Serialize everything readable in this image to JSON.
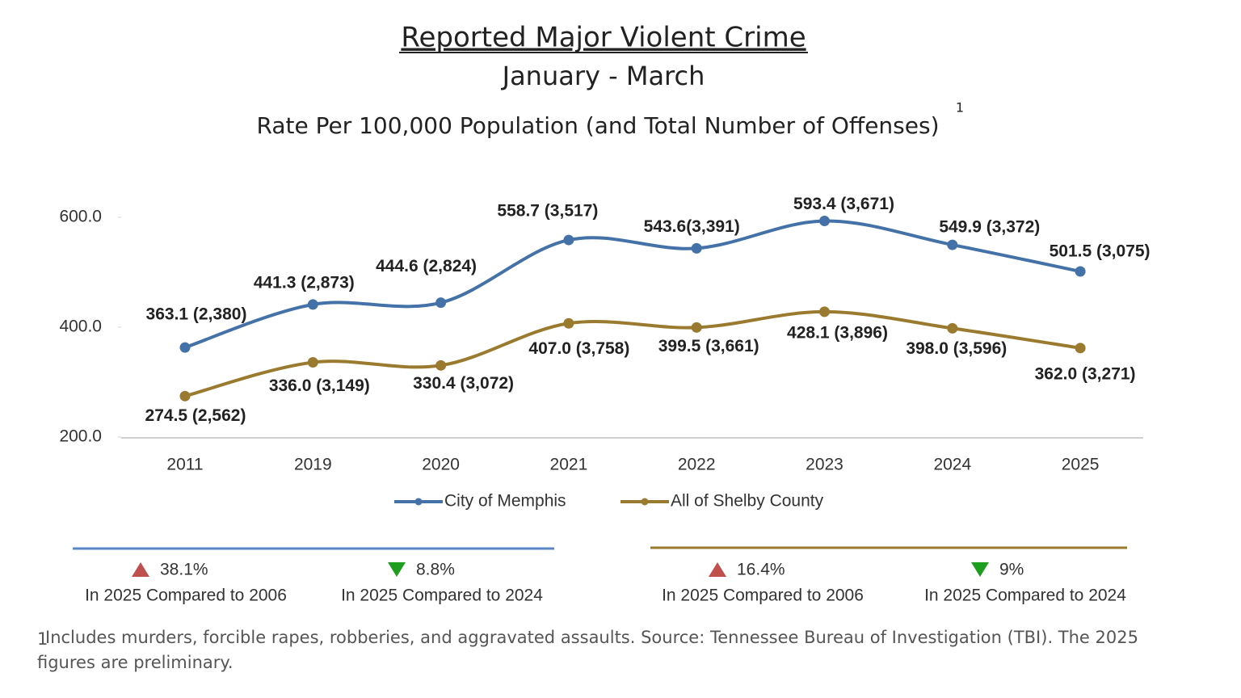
{
  "chart_data": {
    "type": "line",
    "title": "Reported Major Violent Crime",
    "subtitle": "January - March",
    "y_label": "Rate Per 100,000 Population (and Total Number of Offenses)",
    "y_label_note": "1",
    "categories": [
      "2011",
      "2019",
      "2020",
      "2021",
      "2022",
      "2023",
      "2024",
      "2025"
    ],
    "series": [
      {
        "name": "City of Memphis",
        "color": "#4472a8",
        "values": [
          363.1,
          441.3,
          444.6,
          558.7,
          543.6,
          593.4,
          549.9,
          501.5
        ],
        "value_labels": [
          "363.1 (2,380)",
          "441.3 (2,873)",
          "444.6 (2,824)",
          "558.7 (3,517)",
          "543.6(3,391)",
          "593.4 (3,671)",
          "549.9 (3,372)",
          "501.5 (3,075)"
        ]
      },
      {
        "name": "All of Shelby County",
        "color": "#9a7a2e",
        "values": [
          274.5,
          336.0,
          330.4,
          407.0,
          399.5,
          428.1,
          398.0,
          362.0
        ],
        "value_labels": [
          "274.5 (2,562)",
          "336.0 (3,149)",
          "330.4 (3,072)",
          "407.0 (3,758)",
          "399.5 (3,661)",
          "428.1 (3,896)",
          "398.0 (3,596)",
          "362.0 (3,271)"
        ]
      }
    ],
    "ylim": [
      200,
      600
    ],
    "yticks": [
      {
        "value": 200,
        "label": "200.0"
      },
      {
        "value": 400,
        "label": "400.0"
      },
      {
        "value": 600,
        "label": "600.0"
      }
    ],
    "grid": false,
    "legend": "bottom"
  },
  "comparisons": [
    {
      "series": 0,
      "items": [
        {
          "direction": "up",
          "value": 38.1,
          "label": "38.1%",
          "caption": "In 2025 Compared to 2006"
        },
        {
          "direction": "down",
          "value": 8.8,
          "label": "8.8%",
          "caption": "In 2025 Compared to 2024"
        }
      ]
    },
    {
      "series": 1,
      "items": [
        {
          "direction": "up",
          "value": 16.4,
          "label": "16.4%",
          "caption": "In 2025 Compared to 2006"
        },
        {
          "direction": "down",
          "value": 9,
          "label": "9%",
          "caption": "In 2025 Compared to 2024"
        }
      ]
    }
  ],
  "footnote": {
    "marker": "1",
    "text": "Includes murders, forcible rapes, robberies, and aggravated assaults. Source: Tennessee Bureau of Investigation (TBI). The 2025 figures are preliminary."
  }
}
